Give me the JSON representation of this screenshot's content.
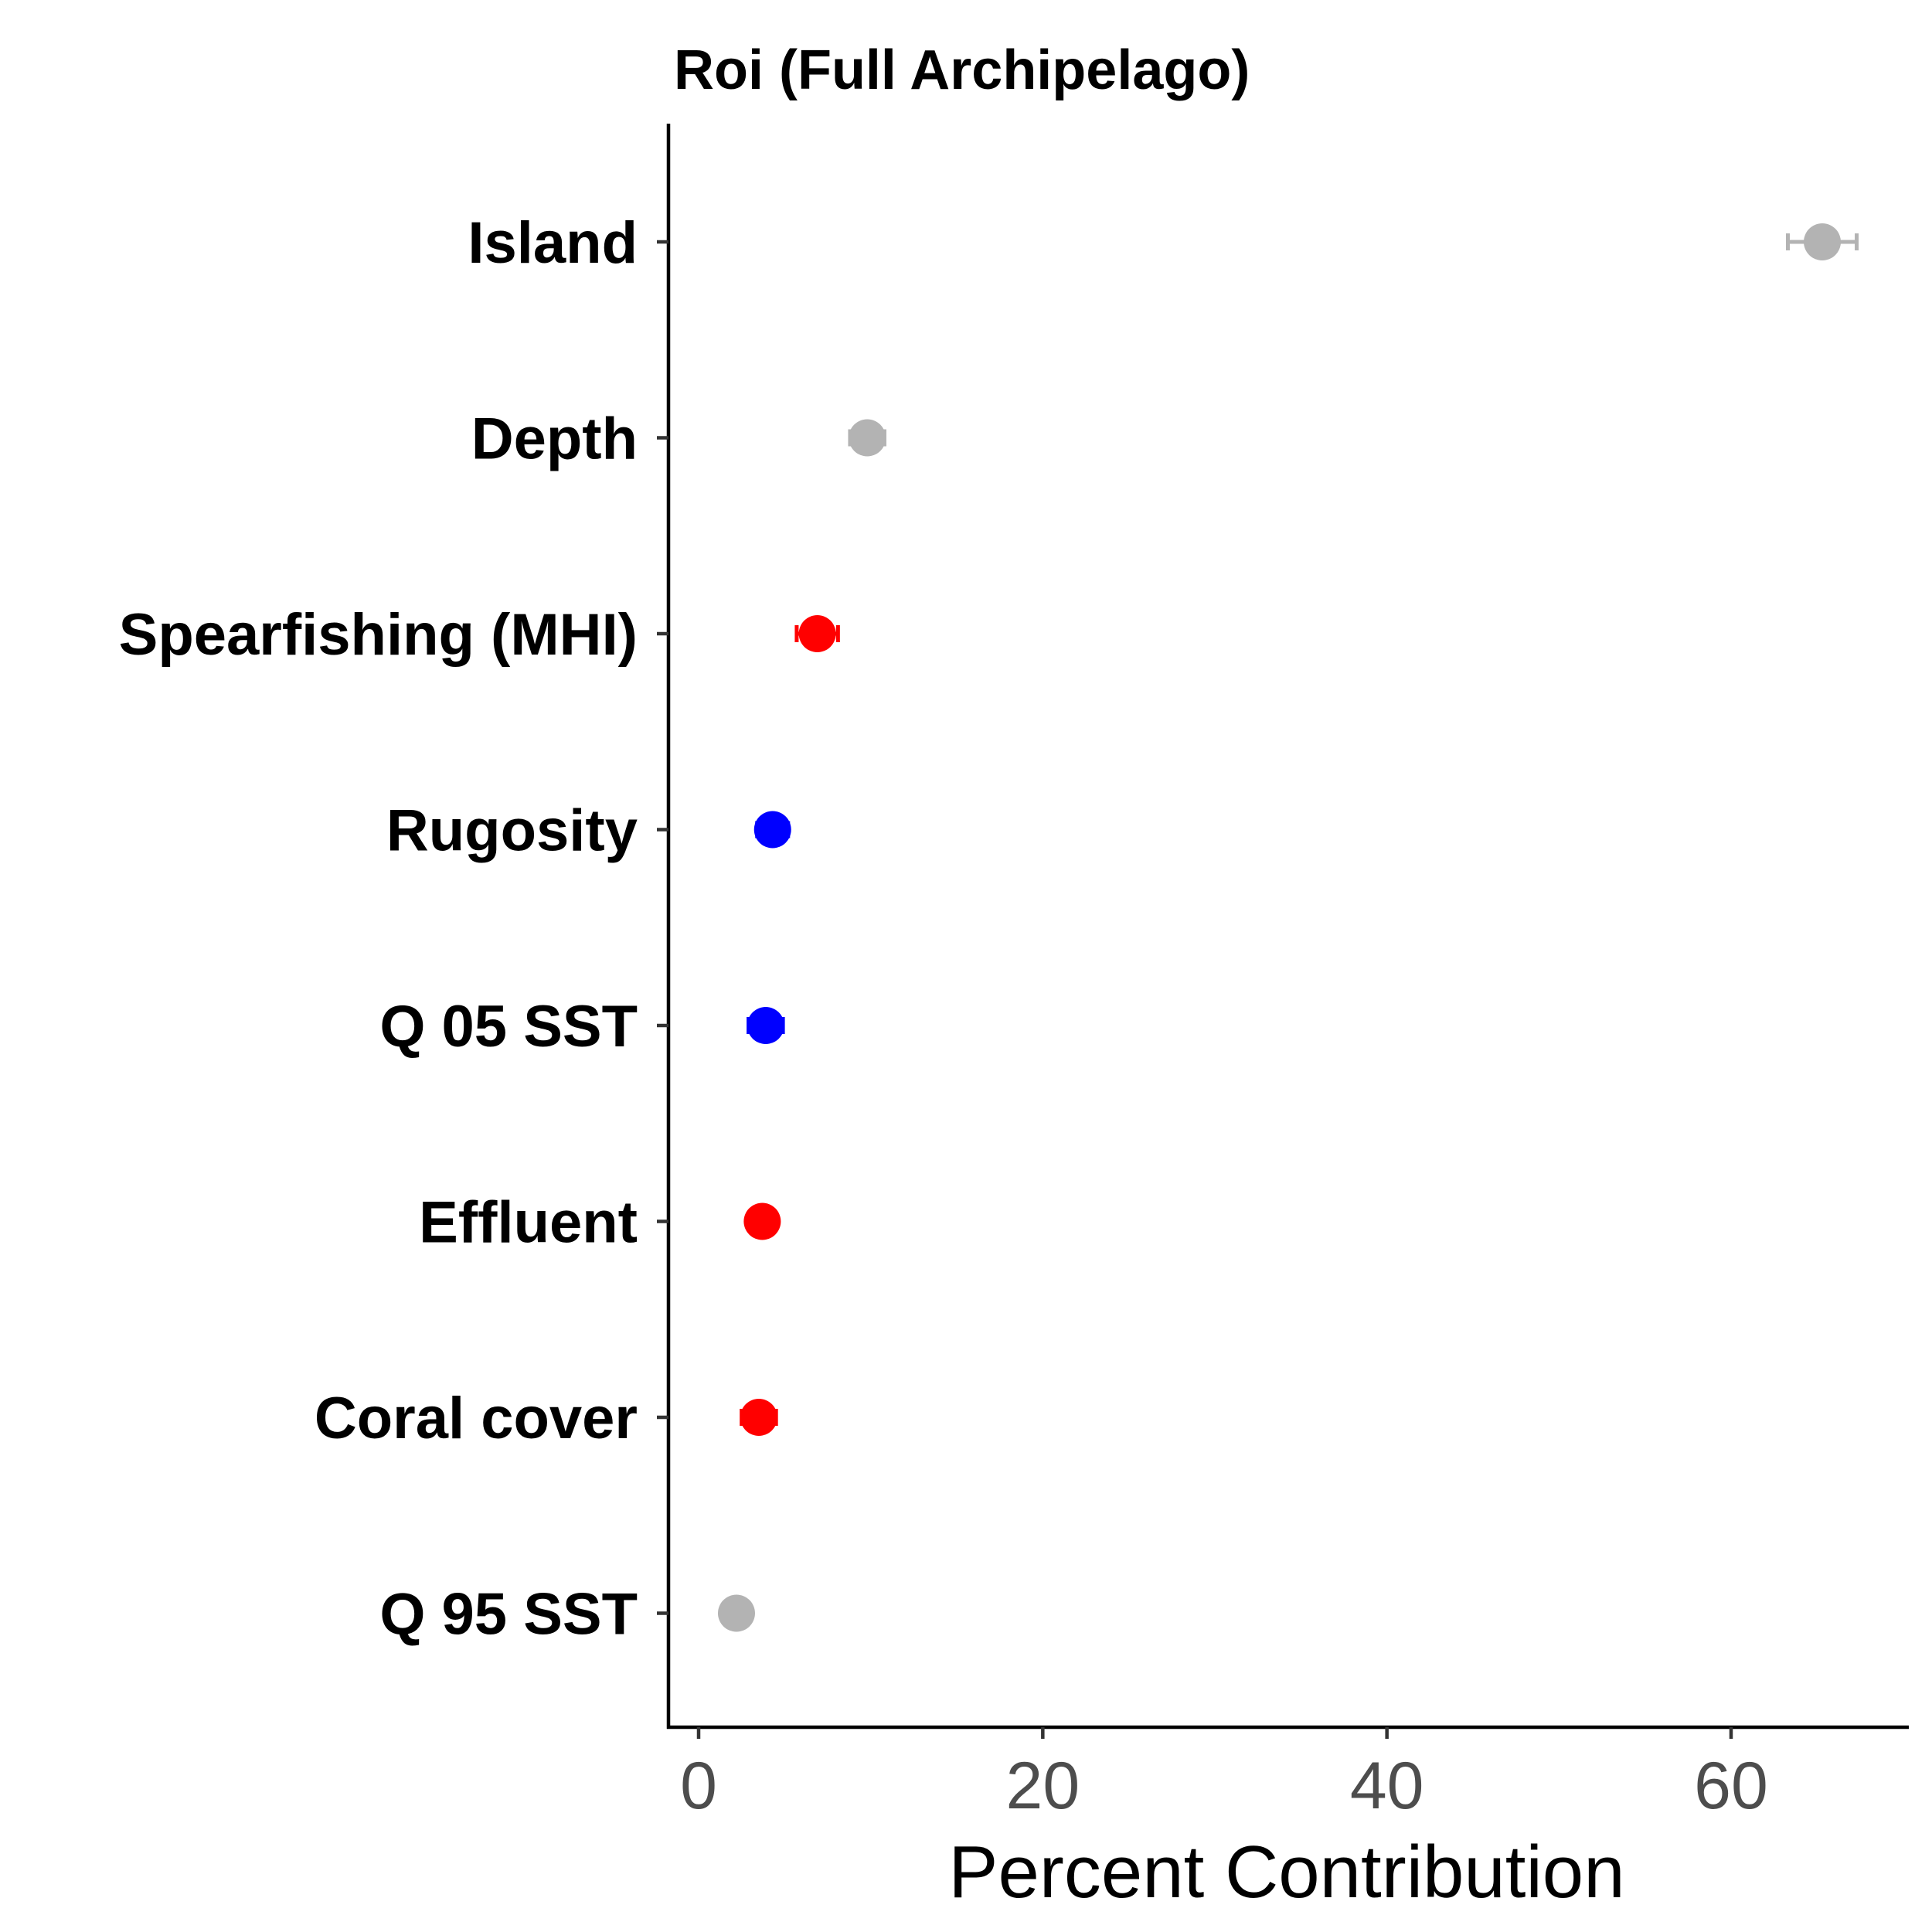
{
  "chart_data": {
    "type": "dot",
    "title": "Roi (Full Archipelago)",
    "xlabel": "Percent Contribution",
    "ylabel": "",
    "xlim": [
      -1.8,
      70
    ],
    "x_ticks": [
      0,
      20,
      40,
      60
    ],
    "x_tick_labels": [
      "0",
      "20",
      "40",
      "60"
    ],
    "grid": false,
    "legend": "none",
    "categories": [
      "Island",
      "Depth",
      "Spearfishing (MHI)",
      "Rugosity",
      "Q 05 SST",
      "Effluent",
      "Coral cover",
      "Q 95 SST"
    ],
    "points": [
      {
        "label": "Island",
        "value": 65.3,
        "err_low": 63.3,
        "err_high": 67.3,
        "color": "#b3b3b3"
      },
      {
        "label": "Depth",
        "value": 9.8,
        "err_low": 8.8,
        "err_high": 10.8,
        "color": "#b3b3b3"
      },
      {
        "label": "Spearfishing (MHI)",
        "value": 6.9,
        "err_low": 5.7,
        "err_high": 8.1,
        "color": "#ff0000"
      },
      {
        "label": "Rugosity",
        "value": 4.3,
        "err_low": 3.4,
        "err_high": 5.2,
        "color": "#0000ff"
      },
      {
        "label": "Q 05 SST",
        "value": 3.9,
        "err_low": 2.9,
        "err_high": 4.9,
        "color": "#0000ff"
      },
      {
        "label": "Effluent",
        "value": 3.7,
        "err_low": 2.9,
        "err_high": 4.5,
        "color": "#ff0000"
      },
      {
        "label": "Coral cover",
        "value": 3.5,
        "err_low": 2.5,
        "err_high": 4.5,
        "color": "#ff0000"
      },
      {
        "label": "Q 95 SST",
        "value": 2.2,
        "err_low": 1.5,
        "err_high": 2.9,
        "color": "#b3b3b3"
      }
    ]
  }
}
